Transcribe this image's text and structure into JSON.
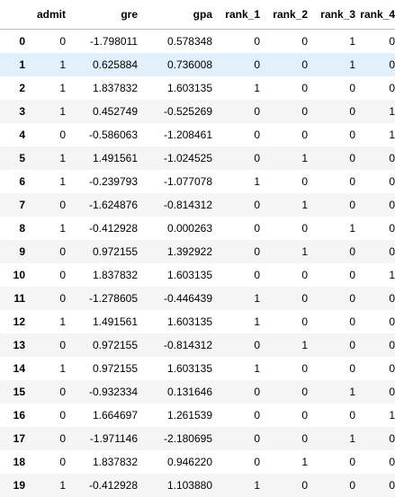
{
  "table": {
    "columns": [
      "",
      "admit",
      "gre",
      "gpa",
      "rank_1",
      "rank_2",
      "rank_3",
      "rank_4"
    ],
    "selected_row": 1,
    "rows": [
      {
        "index": "0",
        "cells": [
          "0",
          "-1.798011",
          "0.578348",
          "0",
          "0",
          "1",
          "0"
        ]
      },
      {
        "index": "1",
        "cells": [
          "1",
          "0.625884",
          "0.736008",
          "0",
          "0",
          "1",
          "0"
        ]
      },
      {
        "index": "2",
        "cells": [
          "1",
          "1.837832",
          "1.603135",
          "1",
          "0",
          "0",
          "0"
        ]
      },
      {
        "index": "3",
        "cells": [
          "1",
          "0.452749",
          "-0.525269",
          "0",
          "0",
          "0",
          "1"
        ]
      },
      {
        "index": "4",
        "cells": [
          "0",
          "-0.586063",
          "-1.208461",
          "0",
          "0",
          "0",
          "1"
        ]
      },
      {
        "index": "5",
        "cells": [
          "1",
          "1.491561",
          "-1.024525",
          "0",
          "1",
          "0",
          "0"
        ]
      },
      {
        "index": "6",
        "cells": [
          "1",
          "-0.239793",
          "-1.077078",
          "1",
          "0",
          "0",
          "0"
        ]
      },
      {
        "index": "7",
        "cells": [
          "0",
          "-1.624876",
          "-0.814312",
          "0",
          "1",
          "0",
          "0"
        ]
      },
      {
        "index": "8",
        "cells": [
          "1",
          "-0.412928",
          "0.000263",
          "0",
          "0",
          "1",
          "0"
        ]
      },
      {
        "index": "9",
        "cells": [
          "0",
          "0.972155",
          "1.392922",
          "0",
          "1",
          "0",
          "0"
        ]
      },
      {
        "index": "10",
        "cells": [
          "0",
          "1.837832",
          "1.603135",
          "0",
          "0",
          "0",
          "1"
        ]
      },
      {
        "index": "11",
        "cells": [
          "0",
          "-1.278605",
          "-0.446439",
          "1",
          "0",
          "0",
          "0"
        ]
      },
      {
        "index": "12",
        "cells": [
          "1",
          "1.491561",
          "1.603135",
          "1",
          "0",
          "0",
          "0"
        ]
      },
      {
        "index": "13",
        "cells": [
          "0",
          "0.972155",
          "-0.814312",
          "0",
          "1",
          "0",
          "0"
        ]
      },
      {
        "index": "14",
        "cells": [
          "1",
          "0.972155",
          "1.603135",
          "1",
          "0",
          "0",
          "0"
        ]
      },
      {
        "index": "15",
        "cells": [
          "0",
          "-0.932334",
          "0.131646",
          "0",
          "0",
          "1",
          "0"
        ]
      },
      {
        "index": "16",
        "cells": [
          "0",
          "1.664697",
          "1.261539",
          "0",
          "0",
          "0",
          "1"
        ]
      },
      {
        "index": "17",
        "cells": [
          "0",
          "-1.971146",
          "-2.180695",
          "0",
          "0",
          "1",
          "0"
        ]
      },
      {
        "index": "18",
        "cells": [
          "0",
          "1.837832",
          "0.946220",
          "0",
          "1",
          "0",
          "0"
        ]
      },
      {
        "index": "19",
        "cells": [
          "1",
          "-0.412928",
          "1.103880",
          "1",
          "0",
          "0",
          "0"
        ]
      }
    ]
  }
}
